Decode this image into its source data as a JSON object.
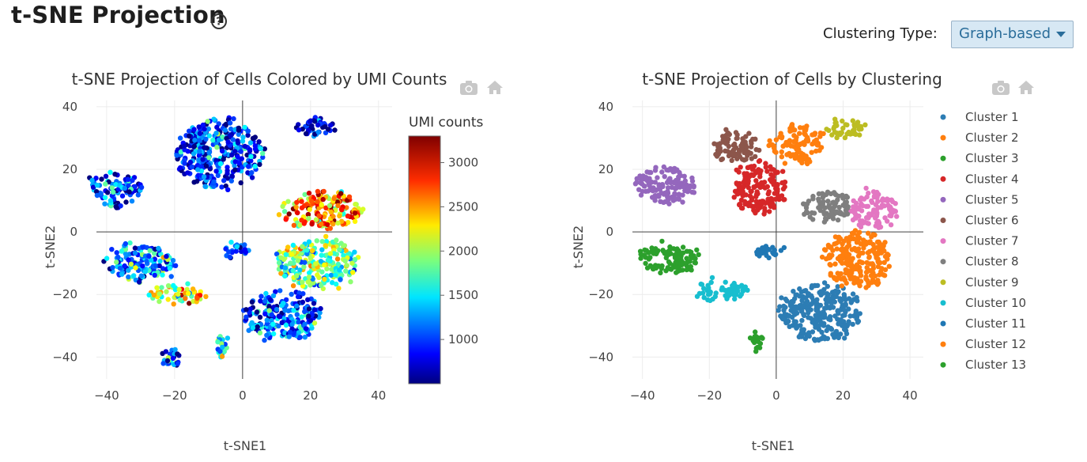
{
  "page": {
    "title": "t-SNE Projection",
    "help_icon": "question-circle-icon"
  },
  "controls": {
    "clustering_label": "Clustering Type:",
    "clustering_value": "Graph-based"
  },
  "toolbar": {
    "icons": [
      "camera-icon",
      "home-icon"
    ]
  },
  "chart_data": [
    {
      "type": "scatter",
      "title": "t-SNE Projection of Cells Colored by UMI Counts",
      "xlabel": "t-SNE1",
      "ylabel": "t-SNE2",
      "xlim": [
        -43,
        44
      ],
      "ylim": [
        -47,
        42
      ],
      "xticks": [
        "−40",
        "−20",
        "0",
        "20",
        "40"
      ],
      "yticks": [
        "40",
        "20",
        "0",
        "−20",
        "−40"
      ],
      "grid": true,
      "colorscale": "jet",
      "colorbar": {
        "title": "UMI counts",
        "range": [
          500,
          3300
        ],
        "ticks": [
          "3000",
          "2500",
          "2000",
          "1500",
          "1000"
        ]
      },
      "regions": [
        {
          "name": "top-middle blob",
          "cx": -7,
          "cy": 25,
          "rx": 13,
          "ry": 11,
          "umi": 900
        },
        {
          "name": "top-left blob",
          "cx": -37,
          "cy": 14,
          "rx": 7,
          "ry": 6,
          "umi": 1000
        },
        {
          "name": "top-right blob",
          "cx": 21,
          "cy": 33,
          "rx": 6,
          "ry": 3,
          "umi": 700
        },
        {
          "name": "mid-right cluster",
          "cx": 23,
          "cy": 7,
          "rx": 12,
          "ry": 6,
          "umi": 2600
        },
        {
          "name": "lower-right cluster",
          "cx": 22,
          "cy": -10,
          "rx": 12,
          "ry": 8,
          "umi": 1900
        },
        {
          "name": "bottom-center cluster",
          "cx": 12,
          "cy": -27,
          "rx": 11,
          "ry": 8,
          "umi": 1100
        },
        {
          "name": "left cluster",
          "cx": -30,
          "cy": -10,
          "rx": 10,
          "ry": 6,
          "umi": 1300
        },
        {
          "name": "left arc",
          "cx": -19,
          "cy": -20,
          "rx": 8,
          "ry": 3,
          "umi": 2100
        },
        {
          "name": "small cluster",
          "cx": -2,
          "cy": -6,
          "rx": 4,
          "ry": 2,
          "umi": 1200
        },
        {
          "name": "bottom-left tail",
          "cx": -21,
          "cy": -41,
          "rx": 2,
          "ry": 3,
          "umi": 900
        },
        {
          "name": "bottom streak",
          "cx": -6,
          "cy": -36,
          "rx": 1,
          "ry": 4,
          "umi": 1500
        }
      ]
    },
    {
      "type": "scatter",
      "title": "t-SNE Projection of Cells by Clustering",
      "xlabel": "t-SNE1",
      "ylabel": "t-SNE2",
      "xlim": [
        -43,
        44
      ],
      "ylim": [
        -47,
        42
      ],
      "xticks": [
        "−40",
        "−20",
        "0",
        "20",
        "40"
      ],
      "yticks": [
        "40",
        "20",
        "0",
        "−20",
        "−40"
      ],
      "grid": true,
      "legend_position": "right",
      "series": [
        {
          "name": "Cluster 1",
          "color": "#2d7db4",
          "cx": 13,
          "cy": -26,
          "rx": 12,
          "ry": 9
        },
        {
          "name": "Cluster 2",
          "color": "#ff7f0e",
          "cx": 6,
          "cy": 28,
          "rx": 8,
          "ry": 6
        },
        {
          "name": "Cluster 3",
          "color": "#2ca02c",
          "cx": -32,
          "cy": -8,
          "rx": 9,
          "ry": 5
        },
        {
          "name": "Cluster 4",
          "color": "#d62728",
          "cx": -5,
          "cy": 14,
          "rx": 8,
          "ry": 8
        },
        {
          "name": "Cluster 5",
          "color": "#9467bd",
          "cx": -33,
          "cy": 15,
          "rx": 9,
          "ry": 6
        },
        {
          "name": "Cluster 6",
          "color": "#8c564b",
          "cx": -12,
          "cy": 27,
          "rx": 7,
          "ry": 5
        },
        {
          "name": "Cluster 7",
          "color": "#e377c2",
          "cx": 29,
          "cy": 7,
          "rx": 7,
          "ry": 6
        },
        {
          "name": "Cluster 8",
          "color": "#7f7f7f",
          "cx": 15,
          "cy": 8,
          "rx": 7,
          "ry": 5
        },
        {
          "name": "Cluster 9",
          "color": "#bcbd22",
          "cx": 21,
          "cy": 33,
          "rx": 6,
          "ry": 3
        },
        {
          "name": "Cluster 10",
          "color": "#17becf",
          "cx": -17,
          "cy": -19,
          "rx": 8,
          "ry": 3
        },
        {
          "name": "Cluster 11",
          "color": "#1f77b4",
          "cx": -2,
          "cy": -6,
          "rx": 4,
          "ry": 2
        },
        {
          "name": "Cluster 12",
          "color": "#ff7f0e",
          "cx": 24,
          "cy": -9,
          "rx": 10,
          "ry": 9
        },
        {
          "name": "Cluster 13",
          "color": "#2ca02c",
          "cx": -6,
          "cy": -35,
          "rx": 1,
          "ry": 4
        }
      ]
    }
  ]
}
